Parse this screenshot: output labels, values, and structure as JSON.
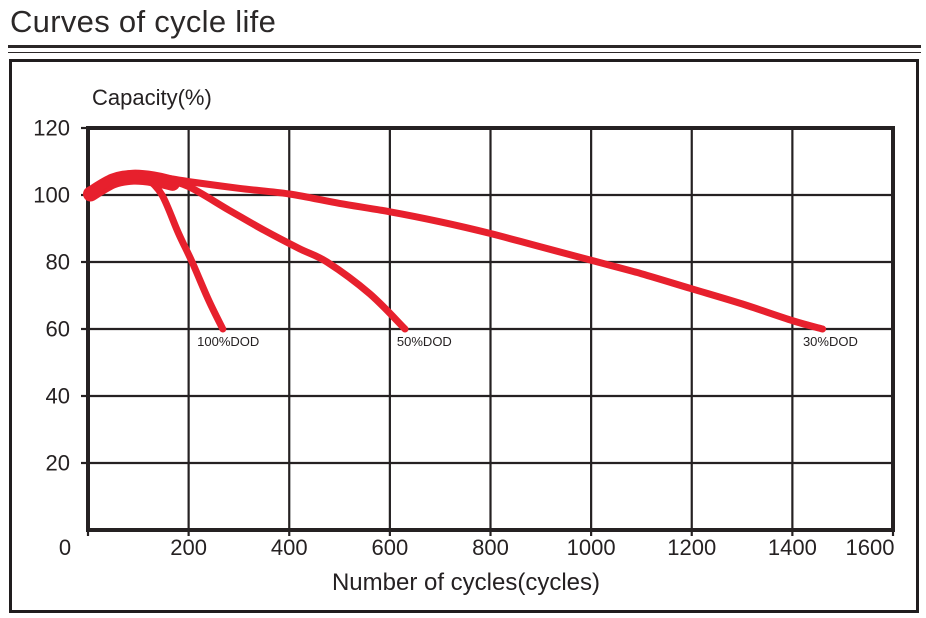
{
  "title": "Curves of cycle life",
  "chart_data": {
    "type": "line",
    "title": "Curves of cycle life",
    "xlabel": "Number of cycles(cycles)",
    "ylabel": "Capacity(%)",
    "xlim": [
      0,
      1600
    ],
    "ylim": [
      0,
      120
    ],
    "x_ticks": [
      0,
      200,
      400,
      600,
      800,
      1000,
      1200,
      1400,
      1600
    ],
    "y_ticks": [
      20,
      40,
      60,
      80,
      100,
      120
    ],
    "grid": true,
    "legend_position": "inline-annotations",
    "colors": {
      "line": "#e7202d",
      "grid": "#252122",
      "text": "#252122"
    },
    "series": [
      {
        "name": "100pct-dod",
        "label": "100%DOD",
        "points": [
          [
            0,
            100
          ],
          [
            40,
            104.5
          ],
          [
            80,
            106
          ],
          [
            115,
            105
          ],
          [
            147,
            100
          ],
          [
            180,
            88.5
          ],
          [
            207,
            80
          ],
          [
            240,
            68.5
          ],
          [
            268,
            60
          ]
        ]
      },
      {
        "name": "50pct-dod",
        "label": "50%DOD",
        "points": [
          [
            0,
            100
          ],
          [
            50,
            104
          ],
          [
            100,
            105.5
          ],
          [
            150,
            104.5
          ],
          [
            200,
            102.5
          ],
          [
            280,
            95.5
          ],
          [
            350,
            89.5
          ],
          [
            420,
            84
          ],
          [
            475,
            80
          ],
          [
            560,
            70.5
          ],
          [
            630,
            60
          ]
        ]
      },
      {
        "name": "30pct-dod",
        "label": "30%DOD",
        "points": [
          [
            0,
            100
          ],
          [
            60,
            105
          ],
          [
            130,
            105.5
          ],
          [
            200,
            104
          ],
          [
            300,
            102
          ],
          [
            400,
            100.3
          ],
          [
            500,
            97.5
          ],
          [
            600,
            95
          ],
          [
            700,
            92
          ],
          [
            800,
            88.5
          ],
          [
            900,
            84.5
          ],
          [
            1000,
            80.5
          ],
          [
            1100,
            76.5
          ],
          [
            1200,
            72
          ],
          [
            1300,
            67.5
          ],
          [
            1400,
            62.5
          ],
          [
            1460,
            60
          ]
        ]
      }
    ],
    "overlap_band": {
      "points": [
        [
          5,
          100.3
        ],
        [
          50,
          104.2
        ],
        [
          90,
          105.3
        ],
        [
          130,
          104.8
        ],
        [
          168,
          103.5
        ]
      ],
      "stroke_width": 15
    },
    "annotations": [
      {
        "text": "100%DOD",
        "x": 217,
        "y": 56
      },
      {
        "text": "50%DOD",
        "x": 614,
        "y": 56
      },
      {
        "text": "30%DOD",
        "x": 1421,
        "y": 56
      }
    ]
  }
}
